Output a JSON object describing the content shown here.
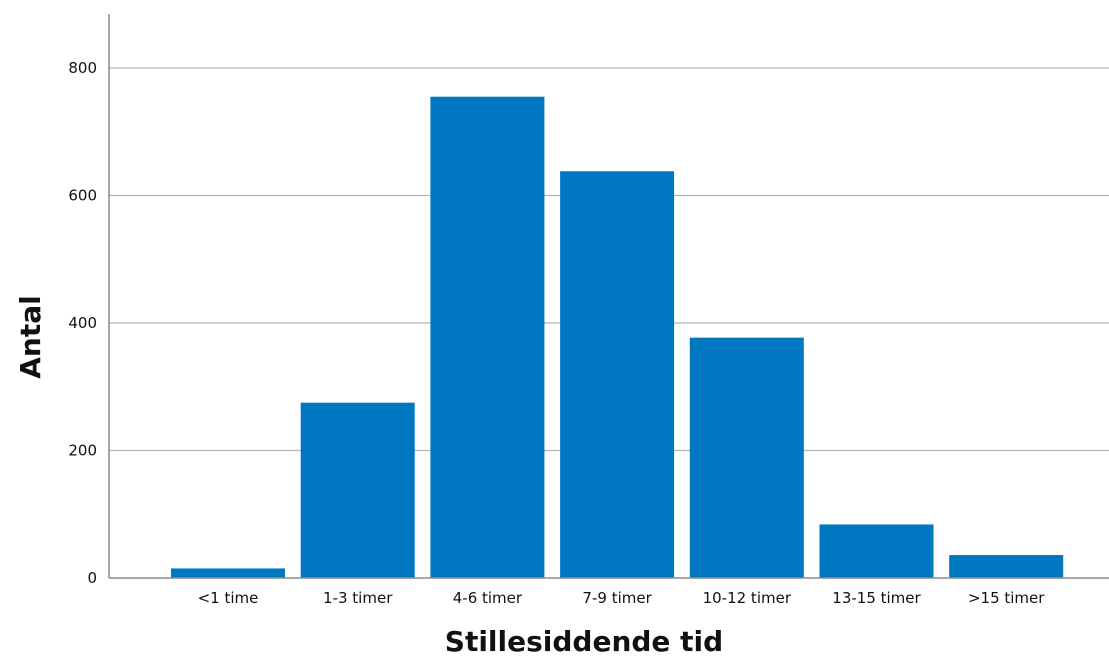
{
  "chart_data": {
    "type": "bar",
    "title": "",
    "xlabel": "Stillesiddende tid",
    "ylabel": "Antal",
    "categories": [
      "<1 time",
      "1-3 timer",
      "4-6 timer",
      "7-9 timer",
      "10-12 timer",
      "13-15 timer",
      ">15 timer"
    ],
    "values": [
      15,
      275,
      755,
      638,
      377,
      84,
      36
    ],
    "yticks": [
      "0",
      "200",
      "400",
      "600",
      "800"
    ],
    "ylim": [
      0,
      880
    ],
    "grid": true,
    "bar_color": "#0078c1",
    "legend": "none"
  }
}
